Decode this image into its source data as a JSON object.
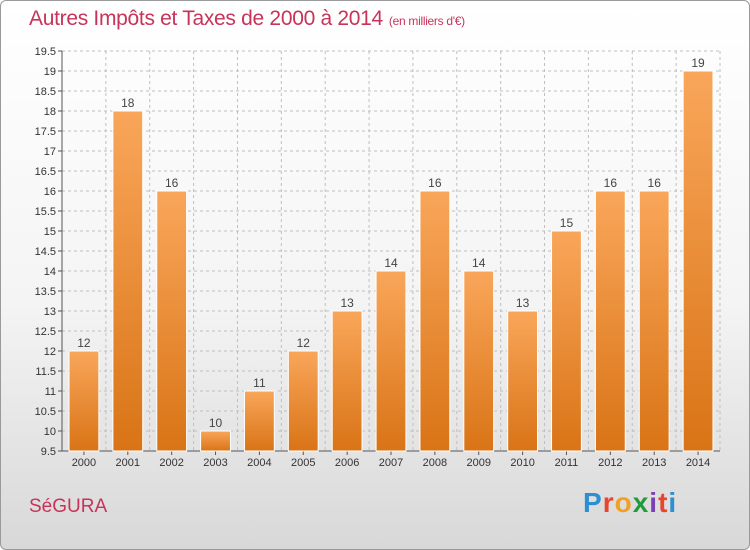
{
  "header": {
    "title": "Autres Impôts et Taxes de 2000 à 2014",
    "subtitle": "(en milliers d'€)"
  },
  "footer": {
    "commune": "SéGURA",
    "logo_letters": [
      "P",
      "r",
      "o",
      "x",
      "i",
      "t",
      "i"
    ],
    "logo_colors": [
      "#2a8fd3",
      "#e8452c",
      "#f0a11f",
      "#1f9c3c",
      "#7a3fb0",
      "#e8452c",
      "#2a8fd3"
    ]
  },
  "colors": {
    "bar_top": "#f9a65a",
    "bar_bottom": "#d97416",
    "bar_stroke": "#ffffff",
    "grid": "#bfbfbf",
    "text_accent": "#c8335a"
  },
  "chart_data": {
    "type": "bar",
    "title": "Autres Impôts et Taxes de 2000 à 2014",
    "xlabel": "",
    "ylabel": "",
    "categories": [
      "2000",
      "2001",
      "2002",
      "2003",
      "2004",
      "2005",
      "2006",
      "2007",
      "2008",
      "2009",
      "2010",
      "2011",
      "2012",
      "2013",
      "2014"
    ],
    "values": [
      12,
      18,
      16,
      10,
      11,
      12,
      13,
      14,
      16,
      14,
      13,
      15,
      16,
      16,
      19
    ],
    "data_labels": [
      "12",
      "18",
      "16",
      "10",
      "11",
      "12",
      "13",
      "14",
      "16",
      "14",
      "13",
      "15",
      "16",
      "16",
      "19"
    ],
    "ylim": [
      9.5,
      19.5
    ],
    "yticks": [
      "9.5",
      "10",
      "10.5",
      "11",
      "11.5",
      "12",
      "12.5",
      "13",
      "13.5",
      "14",
      "14.5",
      "15",
      "15.5",
      "16",
      "16.5",
      "17",
      "17.5",
      "18",
      "18.5",
      "19",
      "19.5"
    ],
    "grid": true,
    "legend": "none"
  }
}
